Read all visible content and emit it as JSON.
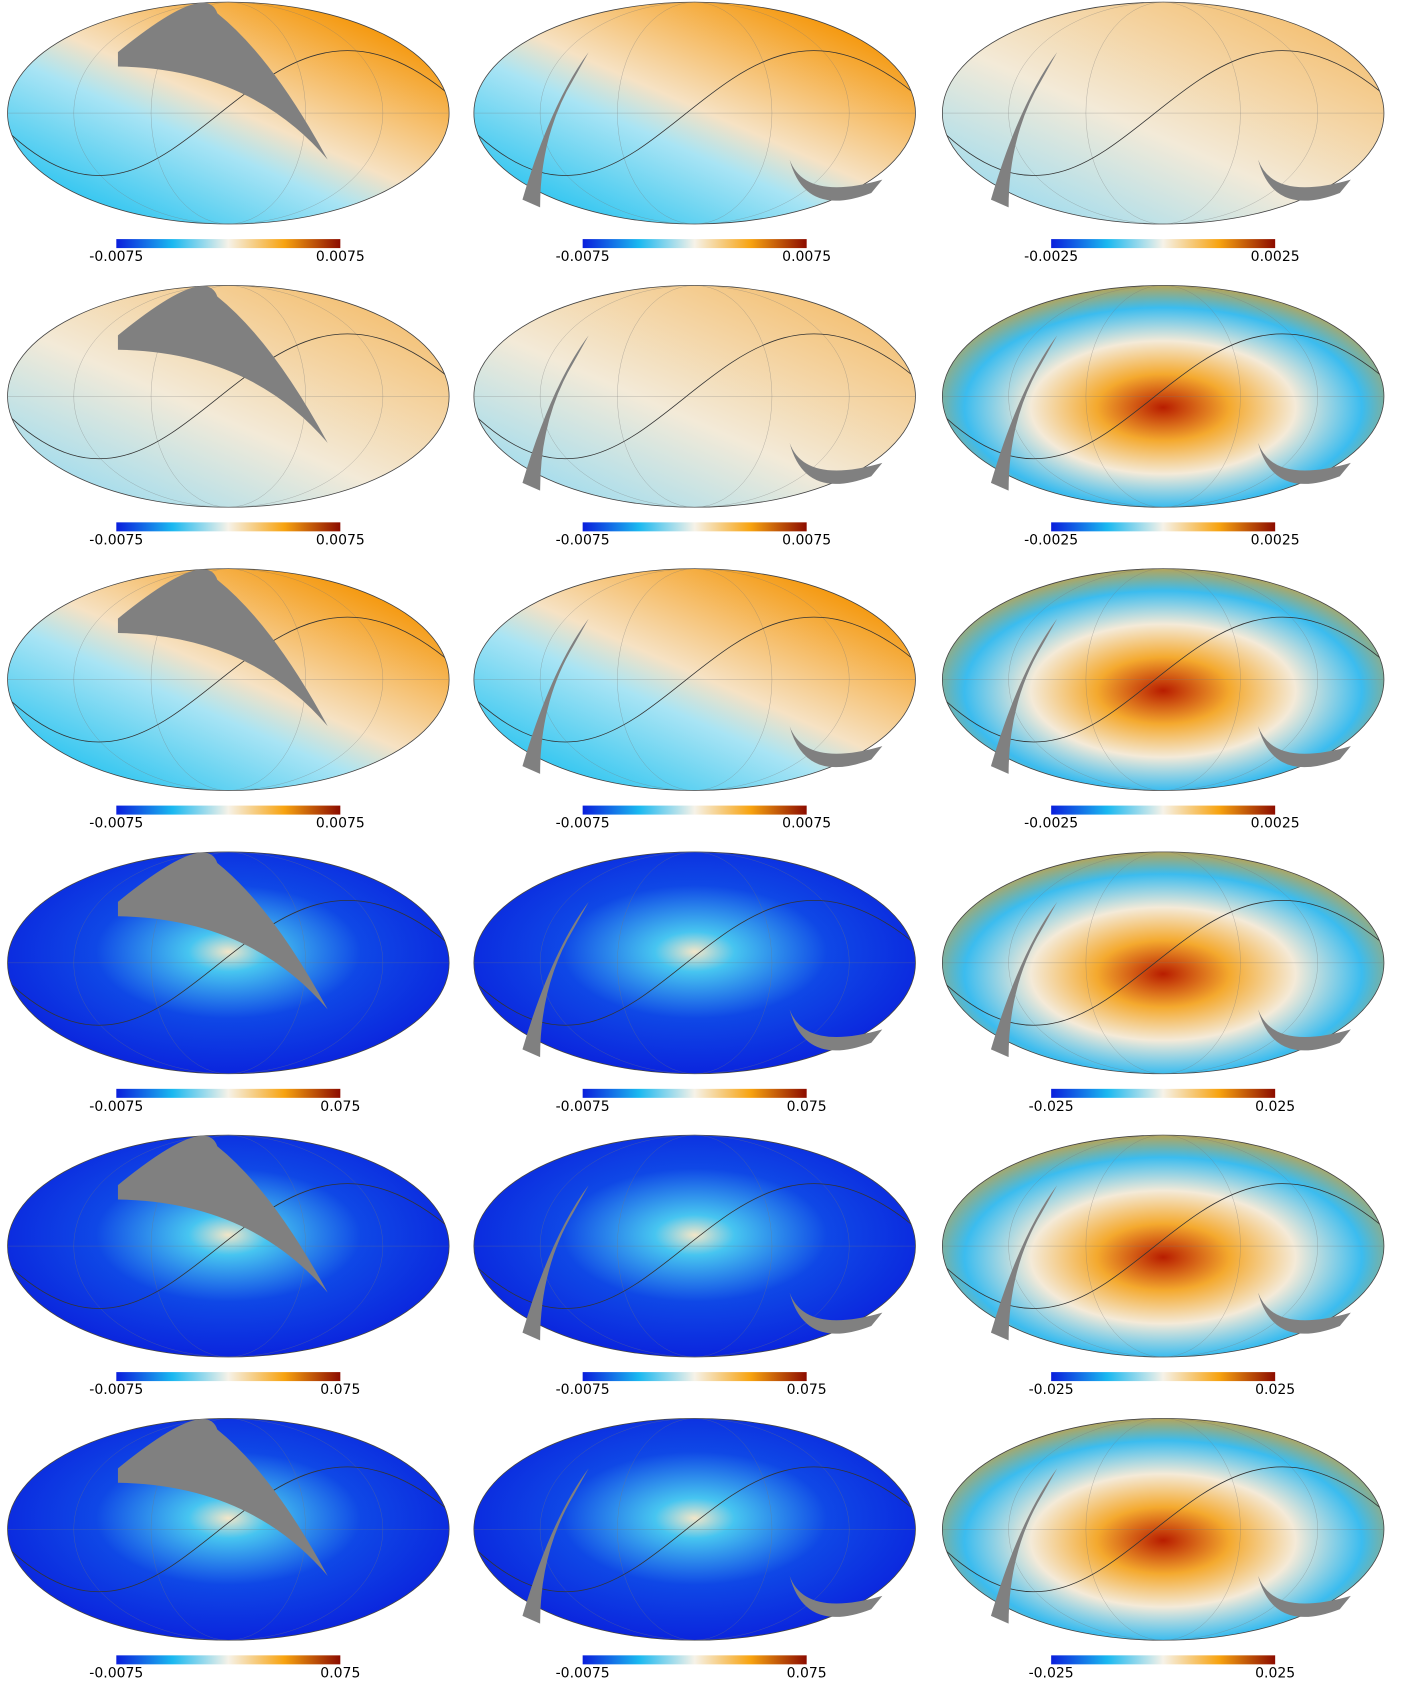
{
  "rows": [
    [
      {
        "min": "-0.0075",
        "max": "0.0075"
      },
      {
        "min": "-0.0075",
        "max": "0.0075"
      },
      {
        "min": "-0.0025",
        "max": "0.0025"
      }
    ],
    [
      {
        "min": "-0.0075",
        "max": "0.0075"
      },
      {
        "min": "-0.0075",
        "max": "0.0075"
      },
      {
        "min": "-0.0025",
        "max": "0.0025"
      }
    ],
    [
      {
        "min": "-0.0075",
        "max": "0.0075"
      },
      {
        "min": "-0.0075",
        "max": "0.0075"
      },
      {
        "min": "-0.0025",
        "max": "0.0025"
      }
    ],
    [
      {
        "min": "-0.0075",
        "max": "0.075"
      },
      {
        "min": "-0.0075",
        "max": "0.075"
      },
      {
        "min": "-0.025",
        "max": "0.025"
      }
    ],
    [
      {
        "min": "-0.0075",
        "max": "0.075"
      },
      {
        "min": "-0.0075",
        "max": "0.075"
      },
      {
        "min": "-0.025",
        "max": "0.025"
      }
    ],
    [
      {
        "min": "-0.0075",
        "max": "0.075"
      },
      {
        "min": "-0.0075",
        "max": "0.075"
      },
      {
        "min": "-0.025",
        "max": "0.025"
      }
    ]
  ]
}
